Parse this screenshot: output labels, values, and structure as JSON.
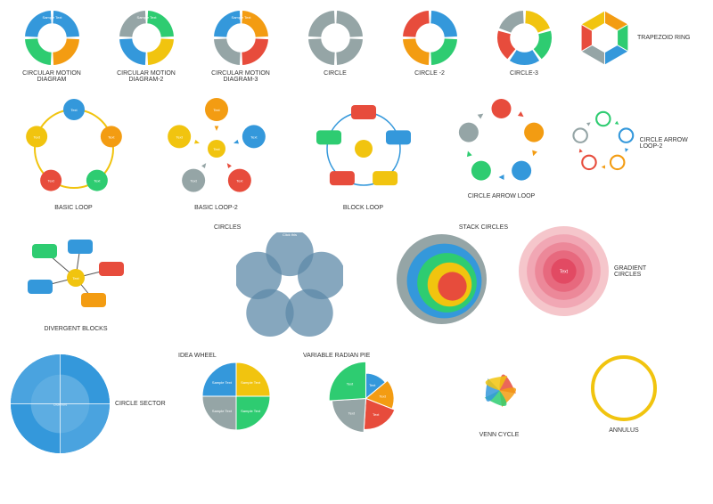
{
  "colors": {
    "blue": "#3498db",
    "green": "#2ecc71",
    "orange": "#f39c12",
    "red": "#e74c3c",
    "yellow": "#f1c40f",
    "gray": "#95a5a6",
    "darkBlue": "#2980b9",
    "darkGray": "#7f8c8d",
    "lightBlue": "#5dade2",
    "pink": "#e78fa0",
    "teal": "#1abc9c"
  },
  "row1": [
    {
      "label": "CIRCULAR MOTION DIAGRAM",
      "segments": [
        "#3498db",
        "#f39c12",
        "#2ecc71",
        "#3498db"
      ],
      "text": "Sample Text"
    },
    {
      "label": "CIRCULAR MOTION DIAGRAM-2",
      "segments": [
        "#2ecc71",
        "#f1c40f",
        "#3498db",
        "#95a5a6"
      ],
      "text": "Sample Text"
    },
    {
      "label": "CIRCULAR MOTION DIAGRAM-3",
      "segments": [
        "#f39c12",
        "#e74c3c",
        "#95a5a6",
        "#3498db"
      ],
      "text": "Sample Text"
    },
    {
      "label": "CIRCLE",
      "segments": [
        "#95a5a6",
        "#95a5a6",
        "#95a5a6",
        "#95a5a6"
      ],
      "text": ""
    },
    {
      "label": "CIRCLE\n-2",
      "segments": [
        "#3498db",
        "#2ecc71",
        "#f39c12",
        "#e74c3c"
      ],
      "text": ""
    },
    {
      "label": "CIRCLE-3",
      "segments": [
        "#f1c40f",
        "#2ecc71",
        "#3498db",
        "#e74c3c",
        "#95a5a6"
      ],
      "text": ""
    },
    {
      "label": "TRAPEZOID RING",
      "segments": [
        "#f39c12",
        "#2ecc71",
        "#3498db",
        "#95a5a6",
        "#e74c3c",
        "#f1c40f"
      ],
      "text": "Sample Text"
    }
  ],
  "row2": [
    {
      "label": "BASIC LOOP",
      "nodes": [
        "#3498db",
        "#f39c12",
        "#2ecc71",
        "#e74c3c",
        "#f1c40f"
      ],
      "ring": "#f1c40f"
    },
    {
      "label": "BASIC LOOP-2",
      "nodes": [
        "#f39c12",
        "#3498db",
        "#e74c3c",
        "#95a5a6",
        "#f1c40f"
      ],
      "center": "#f1c40f"
    },
    {
      "label": "BLOCK LOOP",
      "nodes": [
        "#e74c3c",
        "#3498db",
        "#f1c40f",
        "#e74c3c",
        "#2ecc71"
      ],
      "ring": "#3498db"
    },
    {
      "label": "CIRCLE ARROW LOOP",
      "nodes": [
        "#e74c3c",
        "#f39c12",
        "#3498db",
        "#2ecc71",
        "#95a5a6"
      ]
    },
    {
      "label": "CIRCLE ARROW LOOP-2",
      "nodes": [
        "#2ecc71",
        "#3498db",
        "#f39c12",
        "#e74c3c",
        "#95a5a6"
      ]
    }
  ],
  "row3": [
    {
      "label": "DIVERGENT BLOCKS",
      "nodes": [
        "#2ecc71",
        "#3498db",
        "#e74c3c",
        "#f39c12",
        "#3498db"
      ],
      "center": "#f1c40f"
    },
    {
      "label": "CIRCLES",
      "petals": [
        "#5d8aa8",
        "#5d8aa8",
        "#5d8aa8",
        "#5d8aa8",
        "#5d8aa8"
      ]
    },
    {
      "label": "STACK CIRCLES",
      "rings": [
        "#95a5a6",
        "#3498db",
        "#2ecc71",
        "#f1c40f",
        "#e74c3c"
      ]
    },
    {
      "label": "GRADIENT CIRCLES",
      "rings": [
        "#f5c6cb",
        "#f1a7b4",
        "#ec8899",
        "#e7697e",
        "#e24a63"
      ]
    }
  ],
  "row4": [
    {
      "label": "CIRCLE SECTOR",
      "outer": "#3498db",
      "inner": "#5dade2",
      "divs": 4
    },
    {
      "label": "IDEA WHEEL",
      "segments": [
        "#f1c40f",
        "#2ecc71",
        "#95a5a6",
        "#3498db"
      ],
      "text": "Sample Text"
    },
    {
      "label": "VARIABLE RADIAN PIE",
      "segments": [
        "#3498db",
        "#f39c12",
        "#e74c3c",
        "#95a5a6",
        "#2ecc71"
      ],
      "text": "Text"
    },
    {
      "label": "VENN CYCLE",
      "segments": [
        "#e74c3c",
        "#f39c12",
        "#2ecc71",
        "#3498db",
        "#f1c40f"
      ]
    },
    {
      "label": "ANNULUS",
      "color": "#f1c40f"
    }
  ]
}
